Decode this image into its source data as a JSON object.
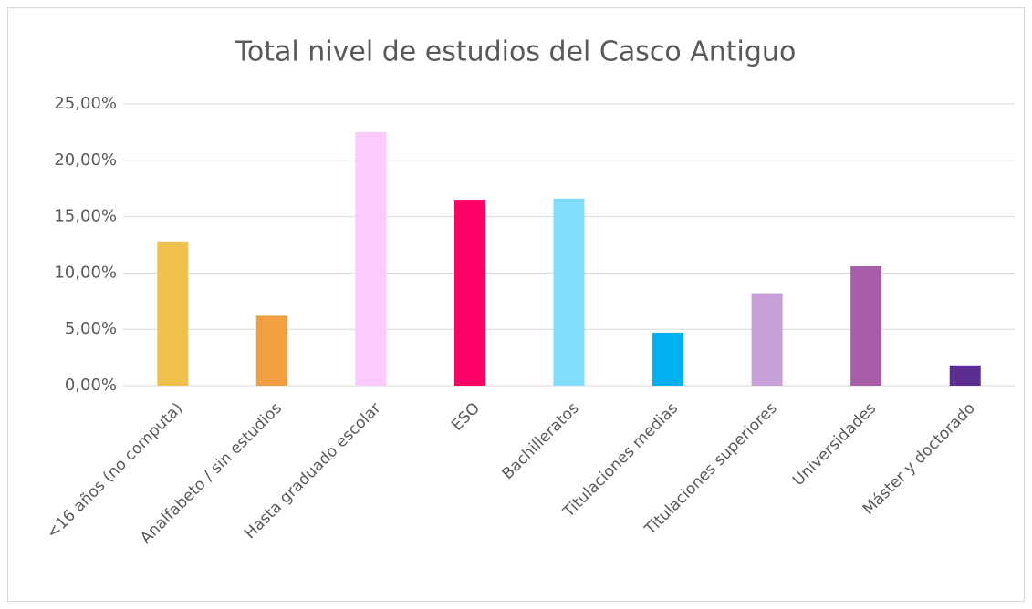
{
  "chart_data": {
    "type": "bar",
    "title": "Total nivel de estudios del Casco Antiguo",
    "categories": [
      "<16 años (no computa)",
      "Analfabeto / sin estudios",
      "Hasta graduado escolar",
      "ESO",
      "Bachilleratos",
      "Titulaciones medias",
      "Titulaciones superiores",
      "Universidades",
      "Máster y doctorado"
    ],
    "values": [
      12.8,
      6.2,
      22.5,
      16.5,
      16.6,
      4.7,
      8.2,
      10.6,
      1.8
    ],
    "colors": [
      "#f0c04c",
      "#f0a040",
      "#fccbfc",
      "#ff0066",
      "#80ddfc",
      "#00b0f0",
      "#c8a0d8",
      "#a85da8",
      "#5b2d90"
    ],
    "ylim": [
      0,
      25
    ],
    "yticks": [
      {
        "value": 0,
        "label": "0,00%"
      },
      {
        "value": 5,
        "label": "5,00%"
      },
      {
        "value": 10,
        "label": "10,00%"
      },
      {
        "value": 15,
        "label": "15,00%"
      },
      {
        "value": 20,
        "label": "20,00%"
      },
      {
        "value": 25,
        "label": "25,00%"
      }
    ],
    "grid": true
  }
}
